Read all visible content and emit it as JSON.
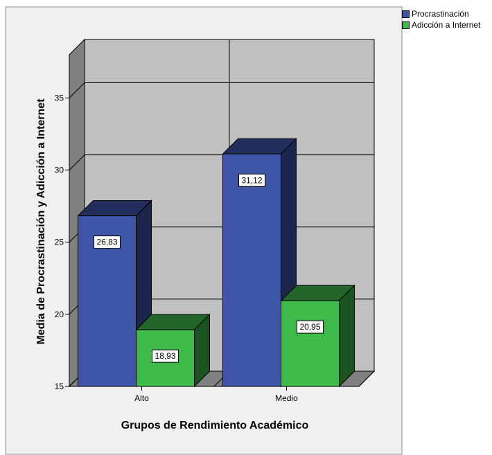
{
  "chart_data": {
    "type": "bar",
    "categories": [
      "Alto",
      "Medio"
    ],
    "series": [
      {
        "name": "Procrastinación",
        "values": [
          26.83,
          31.12
        ],
        "labels": [
          "26,83",
          "31,12"
        ],
        "color": "#3e55a8"
      },
      {
        "name": "Adicción a Internet",
        "values": [
          18.93,
          20.95
        ],
        "labels": [
          "18,93",
          "20,95"
        ],
        "color": "#3dba4a"
      }
    ],
    "xlabel": "Grupos de Rendimiento Académico",
    "ylabel": "Media de Procrastinación y Adicción a Internet",
    "ylim": [
      15,
      38
    ],
    "yticks": [
      15,
      20,
      25,
      30,
      35
    ],
    "ytick_labels": [
      "15",
      "20",
      "25",
      "30",
      "35"
    ],
    "grid": true,
    "legend": "top-right",
    "style": "3d"
  }
}
